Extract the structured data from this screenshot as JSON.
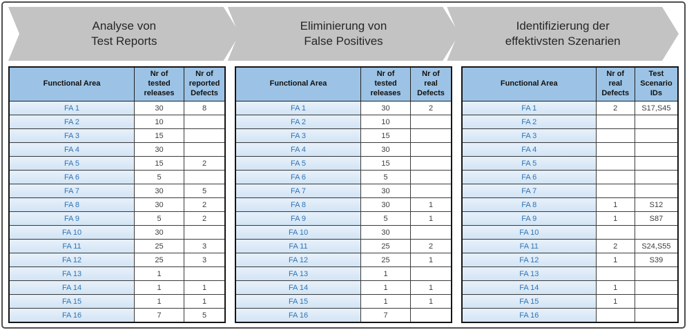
{
  "colors": {
    "chevron_gray": "#c3c3c3",
    "header_blue": "#9cc3e5",
    "row_blue": "#d9e7f6",
    "functional_area_text": "#2e74b5",
    "value_text": "#3c3c3c",
    "frame_border": "#4d4d4d"
  },
  "steps": [
    {
      "label": "Analyse von\nTest Reports"
    },
    {
      "label": "Eliminierung von\nFalse Positives"
    },
    {
      "label": "Identifizierung der\neffektivsten Szenarien"
    }
  ],
  "tables": [
    {
      "headers": [
        "Functional Area",
        "Nr of\ntested\nreleases",
        "Nr of\nreported\nDefects"
      ],
      "rows": [
        [
          "FA 1",
          "30",
          "8"
        ],
        [
          "FA 2",
          "10",
          ""
        ],
        [
          "FA 3",
          "15",
          ""
        ],
        [
          "FA 4",
          "30",
          ""
        ],
        [
          "FA 5",
          "15",
          "2"
        ],
        [
          "FA 6",
          "5",
          ""
        ],
        [
          "FA 7",
          "30",
          "5"
        ],
        [
          "FA 8",
          "30",
          "2"
        ],
        [
          "FA 9",
          "5",
          "2"
        ],
        [
          "FA 10",
          "30",
          ""
        ],
        [
          "FA 11",
          "25",
          "3"
        ],
        [
          "FA 12",
          "25",
          "3"
        ],
        [
          "FA 13",
          "1",
          ""
        ],
        [
          "FA 14",
          "1",
          "1"
        ],
        [
          "FA 15",
          "1",
          "1"
        ],
        [
          "FA 16",
          "7",
          "5"
        ]
      ]
    },
    {
      "headers": [
        "Functional Area",
        "Nr of\ntested\nreleases",
        "Nr of\nreal\nDefects"
      ],
      "rows": [
        [
          "FA 1",
          "30",
          "2"
        ],
        [
          "FA 2",
          "10",
          ""
        ],
        [
          "FA 3",
          "15",
          ""
        ],
        [
          "FA 4",
          "30",
          ""
        ],
        [
          "FA 5",
          "15",
          ""
        ],
        [
          "FA 6",
          "5",
          ""
        ],
        [
          "FA 7",
          "30",
          ""
        ],
        [
          "FA 8",
          "30",
          "1"
        ],
        [
          "FA 9",
          "5",
          "1"
        ],
        [
          "FA 10",
          "30",
          ""
        ],
        [
          "FA 11",
          "25",
          "2"
        ],
        [
          "FA 12",
          "25",
          "1"
        ],
        [
          "FA 13",
          "1",
          ""
        ],
        [
          "FA 14",
          "1",
          "1"
        ],
        [
          "FA 15",
          "1",
          "1"
        ],
        [
          "FA 16",
          "7",
          ""
        ]
      ]
    },
    {
      "headers": [
        "Functional Area",
        "Nr of\nreal\nDefects",
        "Test\nScenario\nIDs"
      ],
      "rows": [
        [
          "FA 1",
          "2",
          "S17,S45"
        ],
        [
          "FA 2",
          "",
          ""
        ],
        [
          "FA 3",
          "",
          ""
        ],
        [
          "FA 4",
          "",
          ""
        ],
        [
          "FA 5",
          "",
          ""
        ],
        [
          "FA 6",
          "",
          ""
        ],
        [
          "FA 7",
          "",
          ""
        ],
        [
          "FA 8",
          "1",
          "S12"
        ],
        [
          "FA 9",
          "1",
          "S87"
        ],
        [
          "FA 10",
          "",
          ""
        ],
        [
          "FA 11",
          "2",
          "S24,S55"
        ],
        [
          "FA 12",
          "1",
          "S39"
        ],
        [
          "FA 13",
          "",
          ""
        ],
        [
          "FA 14",
          "1",
          ""
        ],
        [
          "FA 15",
          "1",
          ""
        ],
        [
          "FA 16",
          "",
          ""
        ]
      ]
    }
  ]
}
